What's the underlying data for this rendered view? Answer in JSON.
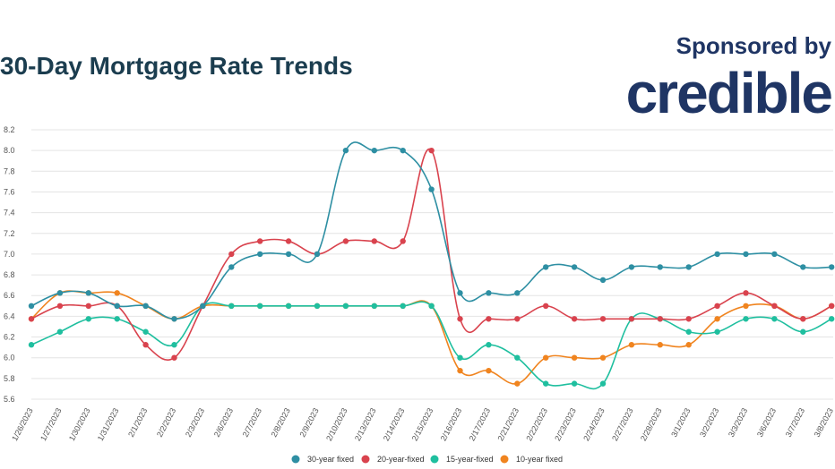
{
  "header": {
    "title": "30-Day Mortgage Rate Trends"
  },
  "sponsor": {
    "line": "Sponsored by",
    "brand": "credible"
  },
  "chart_data": {
    "type": "line",
    "title": "30-Day Mortgage Rate Trends",
    "xlabel": "",
    "ylabel": "",
    "ylim": [
      5.6,
      8.2
    ],
    "yticks": [
      "8.2",
      "8.0",
      "7.8",
      "7.6",
      "7.4",
      "7.2",
      "7.0",
      "6.8",
      "6.6",
      "6.4",
      "6.2",
      "6.0",
      "5.8",
      "5.6"
    ],
    "grid": true,
    "legend_position": "bottom-center",
    "categories": [
      "1/26/2023",
      "1/27/2023",
      "1/30/2023",
      "1/31/2023",
      "2/1/2023",
      "2/2/2023",
      "2/3/2023",
      "2/6/2023",
      "2/7/2023",
      "2/8/2023",
      "2/9/2023",
      "2/10/2023",
      "2/13/2023",
      "2/14/2023",
      "2/15/2023",
      "2/16/2023",
      "2/17/2023",
      "2/21/2023",
      "2/22/2023",
      "2/23/2023",
      "2/24/2023",
      "2/27/2023",
      "2/28/2023",
      "3/1/2023",
      "3/2/2023",
      "3/3/2023",
      "3/6/2023",
      "3/7/2023",
      "3/8/2023"
    ],
    "series": [
      {
        "name": "30-year fixed",
        "color": "#2e8fa3",
        "values": [
          6.5,
          6.625,
          6.625,
          6.5,
          6.5,
          6.375,
          6.5,
          6.875,
          7.0,
          7.0,
          7.0,
          8.0,
          8.0,
          8.0,
          7.625,
          6.625,
          6.625,
          6.625,
          6.875,
          6.875,
          6.75,
          6.875,
          6.875,
          6.875,
          7.0,
          7.0,
          7.0,
          6.875,
          6.875
        ]
      },
      {
        "name": "20-year-fixed",
        "color": "#d9434e",
        "values": [
          6.375,
          6.5,
          6.5,
          6.5,
          6.125,
          6.0,
          6.5,
          7.0,
          7.125,
          7.125,
          7.0,
          7.125,
          7.125,
          7.125,
          8.0,
          6.375,
          6.375,
          6.375,
          6.5,
          6.375,
          6.375,
          6.375,
          6.375,
          6.375,
          6.5,
          6.625,
          6.5,
          6.375,
          6.5
        ]
      },
      {
        "name": "15-year-fixed",
        "color": "#1fbf9f",
        "values": [
          6.125,
          6.25,
          6.375,
          6.375,
          6.25,
          6.125,
          6.5,
          6.5,
          6.5,
          6.5,
          6.5,
          6.5,
          6.5,
          6.5,
          6.5,
          6.0,
          6.125,
          6.0,
          5.75,
          5.75,
          5.75,
          6.375,
          6.375,
          6.25,
          6.25,
          6.375,
          6.375,
          6.25,
          6.375
        ]
      },
      {
        "name": "10-year fixed",
        "color": "#f0841f",
        "values": [
          6.375,
          6.625,
          6.625,
          6.625,
          6.5,
          6.375,
          6.5,
          6.5,
          6.5,
          6.5,
          6.5,
          6.5,
          6.5,
          6.5,
          6.5,
          5.875,
          5.875,
          5.75,
          6.0,
          6.0,
          6.0,
          6.125,
          6.125,
          6.125,
          6.375,
          6.5,
          6.5,
          6.375,
          6.5
        ]
      }
    ]
  }
}
